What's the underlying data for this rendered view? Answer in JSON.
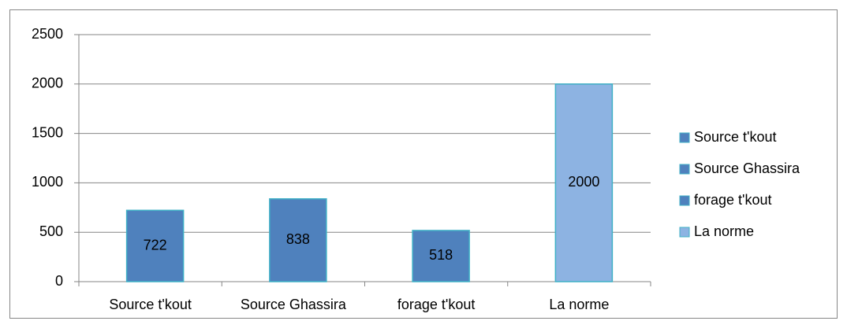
{
  "chart_data": {
    "type": "bar",
    "categories": [
      "Source t'kout",
      "Source Ghassira",
      "forage t'kout",
      "La norme"
    ],
    "values": [
      722,
      838,
      518,
      2000
    ],
    "colors": [
      "#4f81bd",
      "#4f81bd",
      "#4f81bd",
      "#8db3e2"
    ],
    "ylim": [
      0,
      2500
    ],
    "yticks": [
      0,
      500,
      1000,
      1500,
      2000,
      2500
    ],
    "grid": true,
    "legend": "right"
  }
}
